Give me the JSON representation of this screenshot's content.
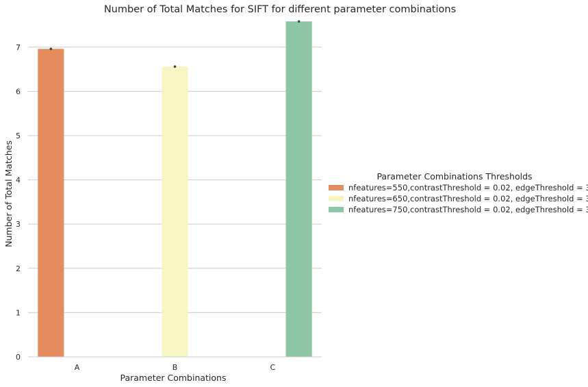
{
  "chart_data": {
    "type": "bar",
    "title": "Number of Total Matches for SIFT for different parameter combinations",
    "xlabel": "Parameter Combinations",
    "ylabel": "Number of Total Matches",
    "categories": [
      "A",
      "B",
      "C"
    ],
    "ylim": [
      0,
      7.6
    ],
    "yticks": [
      0,
      1,
      2,
      3,
      4,
      5,
      6,
      7
    ],
    "grid": "horizontal",
    "legend": {
      "title": "Parameter Combinations Thresholds",
      "placement": "right"
    },
    "series": [
      {
        "name": "nfeatures=550,contrastThreshold = 0.02, edgeThreshold = 3",
        "color": "#e38c5d",
        "values": [
          6.96,
          null,
          null
        ]
      },
      {
        "name": "nfeatures=650,contrastThreshold = 0.02, edgeThreshold = 3",
        "color": "#f8f5c4",
        "values": [
          null,
          6.56,
          null
        ]
      },
      {
        "name": "nfeatures=750,contrastThreshold = 0.02, edgeThreshold = 3",
        "color": "#8cc6a5",
        "values": [
          null,
          null,
          7.58
        ]
      }
    ]
  }
}
